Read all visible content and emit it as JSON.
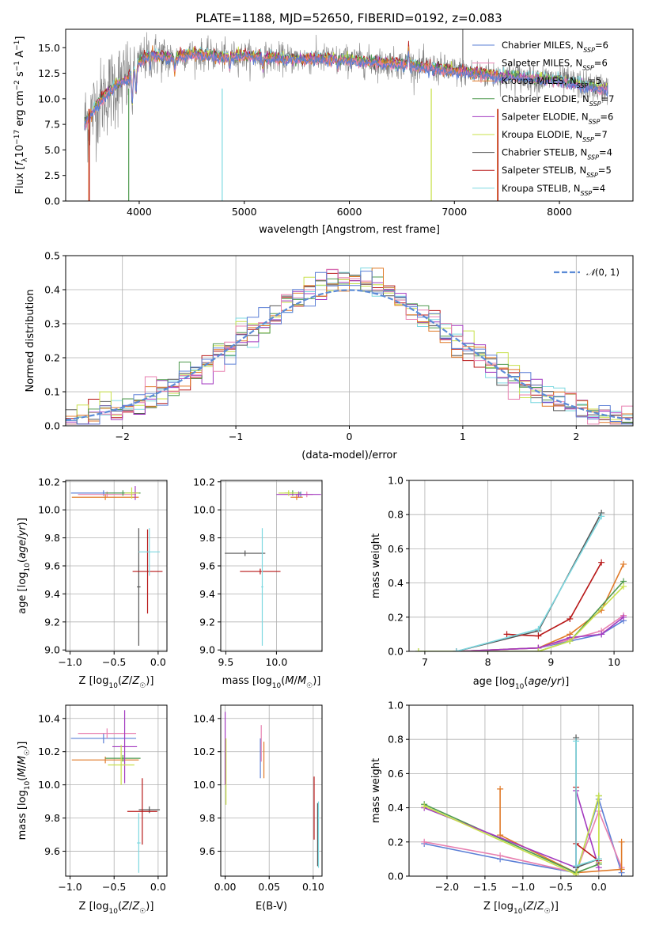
{
  "figure": {
    "title": "PLATE=1188, MJD=52650, FIBERID=0192, z=0.083"
  },
  "models": [
    {
      "name": "Chabrier MILES",
      "n_ssp": "6",
      "color": "#5b7fd6"
    },
    {
      "name": "Salpeter MILES",
      "n_ssp": "6",
      "color": "#e880b0"
    },
    {
      "name": "Kroupa MILES",
      "n_ssp": "5",
      "color": "#e07a28"
    },
    {
      "name": "Chabrier ELODIE",
      "n_ssp": "7",
      "color": "#4f9a4f"
    },
    {
      "name": "Salpeter ELODIE",
      "n_ssp": "6",
      "color": "#a33ac0"
    },
    {
      "name": "Kroupa ELODIE",
      "n_ssp": "7",
      "color": "#c8e04a"
    },
    {
      "name": "Chabrier STELIB",
      "n_ssp": "4",
      "color": "#555555"
    },
    {
      "name": "Salpeter STELIB",
      "n_ssp": "5",
      "color": "#b81818"
    },
    {
      "name": "Kroupa STELIB",
      "n_ssp": "4",
      "color": "#7dd8e0"
    }
  ],
  "chart_data": [
    {
      "id": "spectrum",
      "type": "line",
      "title": "PLATE=1188, MJD=52650, FIBERID=0192, z=0.083",
      "xlabel": "wavelength [Angstrom, rest frame]",
      "ylabel": "Flux [f_λ 10^-17 erg cm^-2 s^-1 A^-1]",
      "xlim": [
        3300,
        8700
      ],
      "ylim": [
        0,
        16.8
      ],
      "xticks": [
        4000,
        5000,
        6000,
        7000,
        8000
      ],
      "yticks": [
        0.0,
        2.5,
        5.0,
        7.5,
        10.0,
        12.5,
        15.0
      ],
      "legend": "top-right",
      "continuum": {
        "x": [
          3480,
          3600,
          3700,
          3800,
          3900,
          4000,
          4100,
          4300,
          4500,
          4800,
          5000,
          5200,
          5500,
          5800,
          6000,
          6200,
          6500,
          6800,
          7000,
          7300,
          7500,
          7800,
          8000,
          8200,
          8400
        ],
        "y": [
          7.6,
          9.4,
          10.6,
          11.5,
          12.0,
          13.5,
          14.3,
          14.0,
          14.4,
          14.1,
          14.2,
          14.0,
          13.9,
          13.9,
          13.8,
          13.6,
          13.4,
          13.0,
          12.7,
          12.4,
          12.2,
          12.0,
          11.8,
          11.4,
          11.0
        ]
      },
      "grid": false
    },
    {
      "id": "residuals",
      "type": "histogram",
      "xlabel": "(data-model)/error",
      "ylabel": "Normed distribution",
      "xlim": [
        -2.5,
        2.5
      ],
      "ylim": [
        0.0,
        0.5
      ],
      "xticks": [
        -2,
        -1,
        0,
        1,
        2
      ],
      "yticks": [
        0.0,
        0.1,
        0.2,
        0.3,
        0.4,
        0.5
      ],
      "bin_width": 0.1,
      "reference_curve": "N(0,1)",
      "legend": "top-right",
      "grid": true
    },
    {
      "id": "age-vs-Z",
      "type": "errorbar",
      "xlabel": "Z [log10(Z/Z☉)]",
      "ylabel": "age [log10(age/yr)]",
      "xlim": [
        -1.05,
        0.1
      ],
      "ylim": [
        8.99,
        10.21
      ],
      "xticks": [
        -1.0,
        -0.5,
        0.0
      ],
      "yticks": [
        9.0,
        9.2,
        9.4,
        9.6,
        9.8,
        10.0,
        10.2
      ],
      "points": [
        {
          "model": 0,
          "x": -0.62,
          "xerr": 0.37,
          "y": 10.12,
          "yerr": 0.02
        },
        {
          "model": 1,
          "x": -0.58,
          "xerr": 0.33,
          "y": 10.11,
          "yerr": 0.02
        },
        {
          "model": 2,
          "x": -0.6,
          "xerr": 0.38,
          "y": 10.09,
          "yerr": 0.02
        },
        {
          "model": 3,
          "x": -0.4,
          "xerr": 0.2,
          "y": 10.12,
          "yerr": 0.02
        },
        {
          "model": 4,
          "x": -0.26,
          "xerr": 0.03,
          "y": 10.12,
          "yerr": 0.05
        },
        {
          "model": 5,
          "x": -0.3,
          "xerr": 0.08,
          "y": 10.12,
          "yerr": 0.04
        },
        {
          "model": 6,
          "x": -0.22,
          "xerr": 0.02,
          "y": 9.45,
          "yerr": 0.42
        },
        {
          "model": 7,
          "x": -0.12,
          "xerr": 0.17,
          "y": 9.56,
          "yerr": 0.3
        },
        {
          "model": 8,
          "x": -0.1,
          "xerr": 0.12,
          "y": 9.7,
          "yerr": 0.17
        }
      ],
      "grid": true
    },
    {
      "id": "age-vs-mass",
      "type": "errorbar",
      "xlabel": "mass [log10(M/M☉)]",
      "ylabel": "",
      "xlim": [
        9.45,
        10.45
      ],
      "ylim": [
        8.99,
        10.21
      ],
      "xticks": [
        9.5,
        10.0
      ],
      "yticks": [
        9.0,
        9.2,
        9.4,
        9.6,
        9.8,
        10.0,
        10.2
      ],
      "points": [
        {
          "model": 0,
          "x": 10.24,
          "xerr": 0.05,
          "y": 10.11,
          "yerr": 0.02
        },
        {
          "model": 1,
          "x": 10.3,
          "xerr": 0.06,
          "y": 10.11,
          "yerr": 0.02
        },
        {
          "model": 2,
          "x": 10.2,
          "xerr": 0.06,
          "y": 10.09,
          "yerr": 0.02
        },
        {
          "model": 3,
          "x": 10.16,
          "xerr": 0.08,
          "y": 10.12,
          "yerr": 0.02
        },
        {
          "model": 4,
          "x": 10.22,
          "xerr": 0.22,
          "y": 10.11,
          "yerr": 0.02
        },
        {
          "model": 5,
          "x": 10.12,
          "xerr": 0.1,
          "y": 10.12,
          "yerr": 0.02
        },
        {
          "model": 6,
          "x": 9.69,
          "xerr": 0.2,
          "y": 9.69,
          "yerr": 0.02
        },
        {
          "model": 7,
          "x": 9.84,
          "xerr": 0.2,
          "y": 9.56,
          "yerr": 0.02
        },
        {
          "model": 8,
          "x": 9.86,
          "xerr": 0.01,
          "y": 9.45,
          "yerr": 0.42
        }
      ],
      "grid": true
    },
    {
      "id": "weight-vs-age",
      "type": "line",
      "xlabel": "age [log10(age/yr)]",
      "ylabel": "mass weight",
      "xlim": [
        6.75,
        10.3
      ],
      "ylim": [
        0.0,
        1.0
      ],
      "xticks": [
        7,
        8,
        9,
        10
      ],
      "yticks": [
        0.0,
        0.2,
        0.4,
        0.6,
        0.8,
        1.0
      ],
      "series": [
        {
          "model": 0,
          "x": [
            7.5,
            8.8,
            9.3,
            9.8,
            10.15
          ],
          "y": [
            0.0,
            0.02,
            0.06,
            0.1,
            0.18
          ]
        },
        {
          "model": 1,
          "x": [
            7.5,
            8.8,
            9.3,
            9.8,
            10.15
          ],
          "y": [
            0.0,
            0.02,
            0.07,
            0.12,
            0.21
          ]
        },
        {
          "model": 2,
          "x": [
            7.5,
            8.8,
            9.3,
            9.8,
            10.15
          ],
          "y": [
            0.0,
            0.02,
            0.1,
            0.24,
            0.51
          ]
        },
        {
          "model": 3,
          "x": [
            6.9,
            8.8,
            9.3,
            10.15
          ],
          "y": [
            0.0,
            0.0,
            0.06,
            0.41
          ]
        },
        {
          "model": 4,
          "x": [
            7.5,
            8.8,
            9.3,
            9.8,
            10.15
          ],
          "y": [
            0.0,
            0.02,
            0.08,
            0.1,
            0.2
          ]
        },
        {
          "model": 5,
          "x": [
            6.9,
            8.8,
            9.3,
            10.15
          ],
          "y": [
            0.0,
            0.0,
            0.06,
            0.38
          ]
        },
        {
          "model": 6,
          "x": [
            7.5,
            8.8,
            9.8
          ],
          "y": [
            0.0,
            0.12,
            0.81
          ]
        },
        {
          "model": 7,
          "x": [
            8.3,
            8.8,
            9.3,
            9.8
          ],
          "y": [
            0.1,
            0.09,
            0.19,
            0.52
          ]
        },
        {
          "model": 8,
          "x": [
            7.5,
            8.8,
            9.8
          ],
          "y": [
            0.0,
            0.13,
            0.79
          ]
        }
      ],
      "grid": true
    },
    {
      "id": "mass-vs-Z",
      "type": "errorbar",
      "xlabel": "Z [log10(Z/Z☉)]",
      "ylabel": "mass [log10(M/M☉)]",
      "xlim": [
        -1.05,
        0.1
      ],
      "ylim": [
        9.45,
        10.48
      ],
      "xticks": [
        -1.0,
        -0.5,
        0.0
      ],
      "yticks": [
        9.6,
        9.8,
        10.0,
        10.2,
        10.4
      ],
      "points": [
        {
          "model": 0,
          "x": -0.62,
          "xerr": 0.37,
          "y": 10.28,
          "yerr": 0.03
        },
        {
          "model": 1,
          "x": -0.58,
          "xerr": 0.33,
          "y": 10.31,
          "yerr": 0.03
        },
        {
          "model": 2,
          "x": -0.6,
          "xerr": 0.38,
          "y": 10.15,
          "yerr": 0.02
        },
        {
          "model": 3,
          "x": -0.4,
          "xerr": 0.2,
          "y": 10.16,
          "yerr": 0.02
        },
        {
          "model": 4,
          "x": -0.38,
          "xerr": 0.14,
          "y": 10.23,
          "yerr": 0.22
        },
        {
          "model": 5,
          "x": -0.42,
          "xerr": 0.15,
          "y": 10.12,
          "yerr": 0.12
        },
        {
          "model": 6,
          "x": -0.1,
          "xerr": 0.12,
          "y": 9.85,
          "yerr": 0.02
        },
        {
          "model": 7,
          "x": -0.18,
          "xerr": 0.17,
          "y": 9.84,
          "yerr": 0.2
        },
        {
          "model": 8,
          "x": -0.22,
          "xerr": 0.02,
          "y": 9.65,
          "yerr": 0.18
        }
      ],
      "grid": true
    },
    {
      "id": "mass-vs-ebv",
      "type": "errorbar",
      "xlabel": "E(B-V)",
      "ylabel": "",
      "xlim": [
        -0.005,
        0.11
      ],
      "ylim": [
        9.45,
        10.48
      ],
      "xticks": [
        0.0,
        0.05,
        0.1
      ],
      "yticks": [
        9.6,
        9.8,
        10.0,
        10.2,
        10.4
      ],
      "points": [
        {
          "model": 0,
          "x": 0.04,
          "xerr": 0.0,
          "y": 10.16,
          "yerr": 0.12
        },
        {
          "model": 1,
          "x": 0.041,
          "xerr": 0.0,
          "y": 10.25,
          "yerr": 0.11
        },
        {
          "model": 2,
          "x": 0.044,
          "xerr": 0.0,
          "y": 10.15,
          "yerr": 0.11
        },
        {
          "model": 3,
          "x": 0.0,
          "xerr": 0.0,
          "y": 10.15,
          "yerr": 0.12
        },
        {
          "model": 4,
          "x": 0.0,
          "xerr": 0.0,
          "y": 10.22,
          "yerr": 0.22
        },
        {
          "model": 5,
          "x": 0.001,
          "xerr": 0.0,
          "y": 10.08,
          "yerr": 0.2
        },
        {
          "model": 6,
          "x": 0.105,
          "xerr": 0.0,
          "y": 9.7,
          "yerr": 0.19
        },
        {
          "model": 7,
          "x": 0.101,
          "xerr": 0.0,
          "y": 9.86,
          "yerr": 0.19
        },
        {
          "model": 8,
          "x": 0.106,
          "xerr": 0.0,
          "y": 9.7,
          "yerr": 0.2
        }
      ],
      "grid": true
    },
    {
      "id": "weight-vs-Z",
      "type": "line",
      "xlabel": "Z [log10(Z/Z☉)]",
      "ylabel": "mass weight",
      "xlim": [
        -2.5,
        0.45
      ],
      "ylim": [
        0.0,
        1.0
      ],
      "xticks": [
        -2.0,
        -1.5,
        -1.0,
        -0.5,
        0.0
      ],
      "yticks": [
        0.0,
        0.2,
        0.4,
        0.6,
        0.8,
        1.0
      ],
      "series": [
        {
          "model": 0,
          "x": [
            -2.3,
            -1.3,
            -0.3,
            0.0,
            0.3
          ],
          "y": [
            0.19,
            0.1,
            0.02,
            0.45,
            0.02
          ]
        },
        {
          "model": 1,
          "x": [
            -2.3,
            -1.3,
            -0.3,
            0.0,
            0.3
          ],
          "y": [
            0.2,
            0.12,
            0.02,
            0.38,
            0.05
          ]
        },
        {
          "model": 2,
          "x": [
            -1.3,
            -1.3,
            -0.3,
            0.3,
            0.3
          ],
          "y": [
            0.51,
            0.24,
            0.02,
            0.04,
            0.2
          ]
        },
        {
          "model": 3,
          "x": [
            -2.3,
            -0.3,
            0.0,
            0.0
          ],
          "y": [
            0.42,
            0.02,
            0.07,
            0.47
          ]
        },
        {
          "model": 4,
          "x": [
            -2.3,
            -0.3,
            -0.3,
            0.0
          ],
          "y": [
            0.4,
            0.05,
            0.5,
            0.05
          ]
        },
        {
          "model": 5,
          "x": [
            -2.3,
            -0.3,
            0.0,
            0.0
          ],
          "y": [
            0.41,
            0.01,
            0.47,
            0.08
          ]
        },
        {
          "model": 6,
          "x": [
            -0.3,
            -0.3,
            0.0
          ],
          "y": [
            0.81,
            0.05,
            0.1
          ]
        },
        {
          "model": 7,
          "x": [
            -0.3,
            -0.3,
            0.0
          ],
          "y": [
            0.52,
            0.19,
            0.09
          ]
        },
        {
          "model": 8,
          "x": [
            -0.3,
            -0.3,
            0.0
          ],
          "y": [
            0.79,
            0.06,
            0.1
          ]
        }
      ],
      "grid": true
    }
  ]
}
